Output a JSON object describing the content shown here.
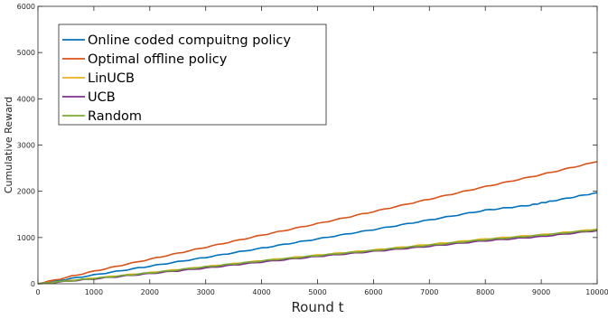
{
  "chart_data": {
    "type": "line",
    "title": "",
    "xlabel": "Round t",
    "ylabel": "Cumulative Reward",
    "xlim": [
      0,
      10000
    ],
    "ylim": [
      0,
      6000
    ],
    "x_ticks": [
      0,
      1000,
      2000,
      3000,
      4000,
      5000,
      6000,
      7000,
      8000,
      9000,
      10000
    ],
    "y_ticks": [
      0,
      1000,
      2000,
      3000,
      4000,
      5000,
      6000
    ],
    "grid": false,
    "legend_position": "top-left",
    "series": [
      {
        "name": "Online coded compuitng policy",
        "color": "#0072BD",
        "x": [
          0,
          1000,
          2000,
          3000,
          4000,
          5000,
          6000,
          7000,
          8000,
          8800,
          9200,
          10000
        ],
        "y": [
          0,
          190,
          380,
          570,
          770,
          970,
          1170,
          1380,
          1590,
          1700,
          1790,
          1970
        ]
      },
      {
        "name": "Optimal offline policy",
        "color": "#D95319",
        "x": [
          0,
          1000,
          2000,
          3000,
          4000,
          5000,
          6000,
          7000,
          8000,
          9000,
          10000
        ],
        "y": [
          0,
          270,
          530,
          790,
          1050,
          1300,
          1560,
          1830,
          2100,
          2360,
          2640
        ]
      },
      {
        "name": "LinUCB",
        "color": "#EDB120",
        "x": [
          0,
          1000,
          2000,
          3000,
          4000,
          5000,
          6000,
          7000,
          8000,
          9000,
          10000
        ],
        "y": [
          0,
          120,
          240,
          370,
          500,
          620,
          730,
          850,
          970,
          1060,
          1180
        ]
      },
      {
        "name": "UCB",
        "color": "#7E2F8E",
        "x": [
          0,
          1000,
          2000,
          3000,
          4000,
          5000,
          6000,
          7000,
          8000,
          9000,
          10000
        ],
        "y": [
          0,
          105,
          220,
          340,
          470,
          590,
          700,
          810,
          930,
          1020,
          1150
        ]
      },
      {
        "name": "Random",
        "color": "#77AC30",
        "x": [
          0,
          1000,
          2000,
          3000,
          4000,
          5000,
          6000,
          7000,
          8000,
          9000,
          10000
        ],
        "y": [
          0,
          115,
          235,
          365,
          495,
          610,
          720,
          835,
          955,
          1050,
          1170
        ]
      }
    ]
  }
}
